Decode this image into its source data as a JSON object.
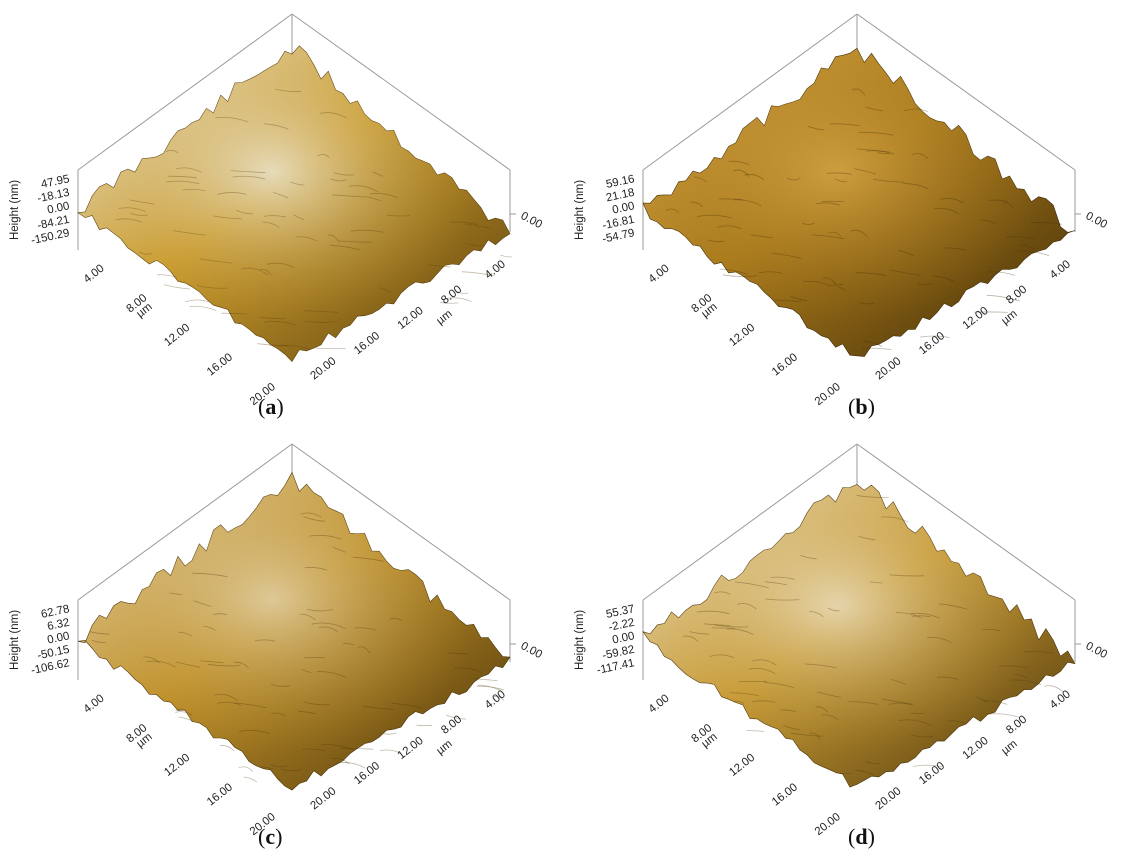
{
  "panels": [
    {
      "id": "a",
      "caption_open": "(",
      "caption_letter": "a",
      "caption_close": ")",
      "height_label": "Height (nm)",
      "height_ticks": [
        "47.95",
        "-18.13",
        "0.00",
        "-84.21",
        "-150.29"
      ],
      "right_zero": "0.00",
      "left_ticks": [
        "4.00",
        "8.00",
        "12.00",
        "16.00",
        "20.00"
      ],
      "right_ticks": [
        "4.00",
        "8.00",
        "12.00",
        "16.00",
        "20.00"
      ],
      "left_unit": "µm",
      "right_unit": "µm",
      "surface": {
        "light": "#efefe6",
        "mid": "#c99a2c",
        "dark": "#5a3f0c"
      }
    },
    {
      "id": "b",
      "caption_open": "(",
      "caption_letter": "b",
      "caption_close": ")",
      "height_label": "Height (nm)",
      "height_ticks": [
        "59.16",
        "21.18",
        "0.00",
        "-16.81",
        "-54.79"
      ],
      "right_zero": "0.00",
      "left_ticks": [
        "4.00",
        "8.00",
        "12.00",
        "16.00",
        "20.00"
      ],
      "right_ticks": [
        "4.00",
        "8.00",
        "12.00",
        "16.00",
        "20.00"
      ],
      "left_unit": "µm",
      "right_unit": "µm",
      "surface": {
        "light": "#d8a84a",
        "mid": "#a8791b",
        "dark": "#3e2a06"
      }
    },
    {
      "id": "c",
      "caption_open": "(",
      "caption_letter": "c",
      "caption_close": ")",
      "height_label": "Height (nm)",
      "height_ticks": [
        "62.78",
        "6.32",
        "0.00",
        "-50.15",
        "-106.62"
      ],
      "right_zero": "0.00",
      "left_ticks": [
        "4.00",
        "8.00",
        "12.00",
        "16.00",
        "20.00"
      ],
      "right_ticks": [
        "4.00",
        "8.00",
        "12.00",
        "16.00",
        "20.00"
      ],
      "left_unit": "µm",
      "right_unit": "µm",
      "surface": {
        "light": "#e6d9b8",
        "mid": "#c0912a",
        "dark": "#4b3408"
      }
    },
    {
      "id": "d",
      "caption_open": "(",
      "caption_letter": "d",
      "caption_close": ")",
      "height_label": "Height (nm)",
      "height_ticks": [
        "55.37",
        "-2.22",
        "0.00",
        "-59.82",
        "-117.41"
      ],
      "right_zero": "0.00",
      "left_ticks": [
        "4.00",
        "8.00",
        "12.00",
        "16.00",
        "20.00"
      ],
      "right_ticks": [
        "4.00",
        "8.00",
        "12.00",
        "16.00",
        "20.00"
      ],
      "left_unit": "µm",
      "right_unit": "µm",
      "surface": {
        "light": "#eee6d0",
        "mid": "#c79a34",
        "dark": "#4a3409"
      }
    }
  ]
}
